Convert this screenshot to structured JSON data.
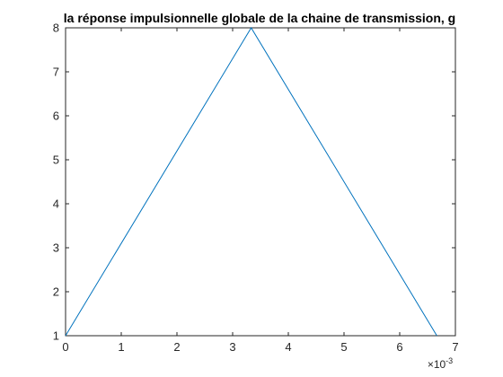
{
  "chart_data": {
    "type": "line",
    "title": "la réponse impulsionnelle globale de la chaine de transmission, g",
    "xlabel": "",
    "ylabel": "",
    "x_exponent": {
      "base": "×10",
      "power": "-3"
    },
    "xlim": [
      0,
      7
    ],
    "ylim": [
      1,
      8
    ],
    "x_ticks": [
      "0",
      "1",
      "2",
      "3",
      "4",
      "5",
      "6",
      "7"
    ],
    "y_ticks": [
      "1",
      "2",
      "3",
      "4",
      "5",
      "6",
      "7",
      "8"
    ],
    "series": [
      {
        "x": [
          0,
          3.333,
          6.667
        ],
        "y": [
          1,
          8,
          1
        ]
      }
    ],
    "grid": false,
    "line_color": "#0072BD",
    "axis_color": "#262626"
  }
}
